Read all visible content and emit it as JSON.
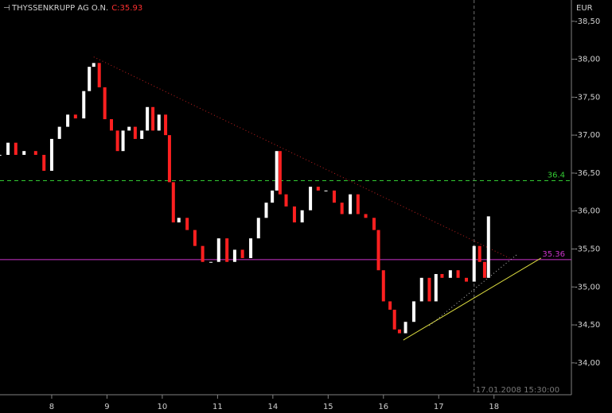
{
  "chart_data": {
    "type": "candlestick",
    "title": "THYSSENKRUPP AG O.N.",
    "close_label": "C:35.93",
    "currency": "EUR",
    "crosshair": {
      "x": 8.64,
      "label": "17.01.2008 15:30:00"
    },
    "xlim": [
      0.065,
      10.4
    ],
    "xticks": [
      {
        "value": 1,
        "label": "8"
      },
      {
        "value": 2,
        "label": "9"
      },
      {
        "value": 3,
        "label": "10"
      },
      {
        "value": 4,
        "label": "11"
      },
      {
        "value": 5,
        "label": "14"
      },
      {
        "value": 6,
        "label": "15"
      },
      {
        "value": 7,
        "label": "16"
      },
      {
        "value": 8,
        "label": "17"
      },
      {
        "value": 9,
        "label": "18"
      }
    ],
    "ylim": [
      33.58,
      38.78
    ],
    "yticks": [
      {
        "value": 38.5,
        "label": "-38,50"
      },
      {
        "value": 38,
        "label": "-38,00"
      },
      {
        "value": 37.5,
        "label": "-37,50"
      },
      {
        "value": 37,
        "label": "-37,00"
      },
      {
        "value": 36.5,
        "label": "-36,50"
      },
      {
        "value": 36,
        "label": "-36,00"
      },
      {
        "value": 35.5,
        "label": "-35,50"
      },
      {
        "value": 35,
        "label": "-35,00"
      },
      {
        "value": 34.5,
        "label": "-34,50"
      },
      {
        "value": 34,
        "label": "-34,00"
      }
    ],
    "up_color": "#ffffff",
    "down_color": "#ff2020",
    "series": [
      {
        "x": [
          0.06,
          0.21,
          0.35,
          0.5,
          0.71,
          0.86,
          1.0,
          1.14,
          1.29,
          1.43,
          1.58,
          1.68,
          1.76,
          1.86,
          1.96,
          2.08,
          2.19,
          2.29,
          2.4,
          2.51,
          2.63,
          2.73,
          2.83,
          2.94,
          3.06,
          3.13,
          3.2,
          3.3,
          3.45,
          3.59,
          3.73,
          3.88,
          4.02,
          4.17,
          4.31,
          4.45,
          4.6,
          4.74,
          4.88,
          4.99,
          5.07,
          5.13,
          5.24,
          5.39,
          5.53,
          5.68,
          5.82,
          5.96,
          6.11,
          6.25,
          6.4,
          6.54,
          6.68,
          6.83,
          6.91,
          7.0,
          7.12,
          7.2,
          7.29,
          7.4,
          7.55,
          7.69,
          7.83,
          7.95,
          8.06,
          8.21,
          8.35,
          8.5,
          8.64,
          8.74,
          8.83,
          8.9
        ],
        "values": [
          36.74,
          36.9,
          36.74,
          36.79,
          36.74,
          36.53,
          36.95,
          37.11,
          37.27,
          37.22,
          37.58,
          37.9,
          37.95,
          37.63,
          37.21,
          37.06,
          36.79,
          37.06,
          37.11,
          36.95,
          37.06,
          37.37,
          37.06,
          37.27,
          37.0,
          36.38,
          35.85,
          35.91,
          35.75,
          35.54,
          35.33,
          35.33,
          35.64,
          35.33,
          35.49,
          35.38,
          35.64,
          35.91,
          36.11,
          36.27,
          36.79,
          36.22,
          36.06,
          35.85,
          36.01,
          36.32,
          36.27,
          36.27,
          36.11,
          35.96,
          36.22,
          35.96,
          35.91,
          35.75,
          35.22,
          34.81,
          34.7,
          34.44,
          34.39,
          34.54,
          34.81,
          35.12,
          34.81,
          35.17,
          35.12,
          35.22,
          35.12,
          35.07,
          35.54,
          35.33,
          35.12,
          35.93
        ]
      }
    ],
    "reference_lines": [
      {
        "value": 36.4,
        "color": "#33cc33",
        "dashed": true
      },
      {
        "value": 35.36,
        "color": "#cc33cc",
        "dashed": false
      }
    ],
    "trend_lines": [
      {
        "x": [
          1.76,
          9.28
        ],
        "y": [
          38.03,
          35.38
        ],
        "color": "#c02020",
        "dashed": true
      },
      {
        "x": [
          7.36,
          9.85
        ],
        "y": [
          34.3,
          35.38
        ],
        "color": "#e0e040",
        "dashed": false
      },
      {
        "x": [
          7.83,
          9.42
        ],
        "y": [
          34.49,
          35.43
        ],
        "color": "#bbbbbb",
        "dashed": true
      }
    ]
  }
}
